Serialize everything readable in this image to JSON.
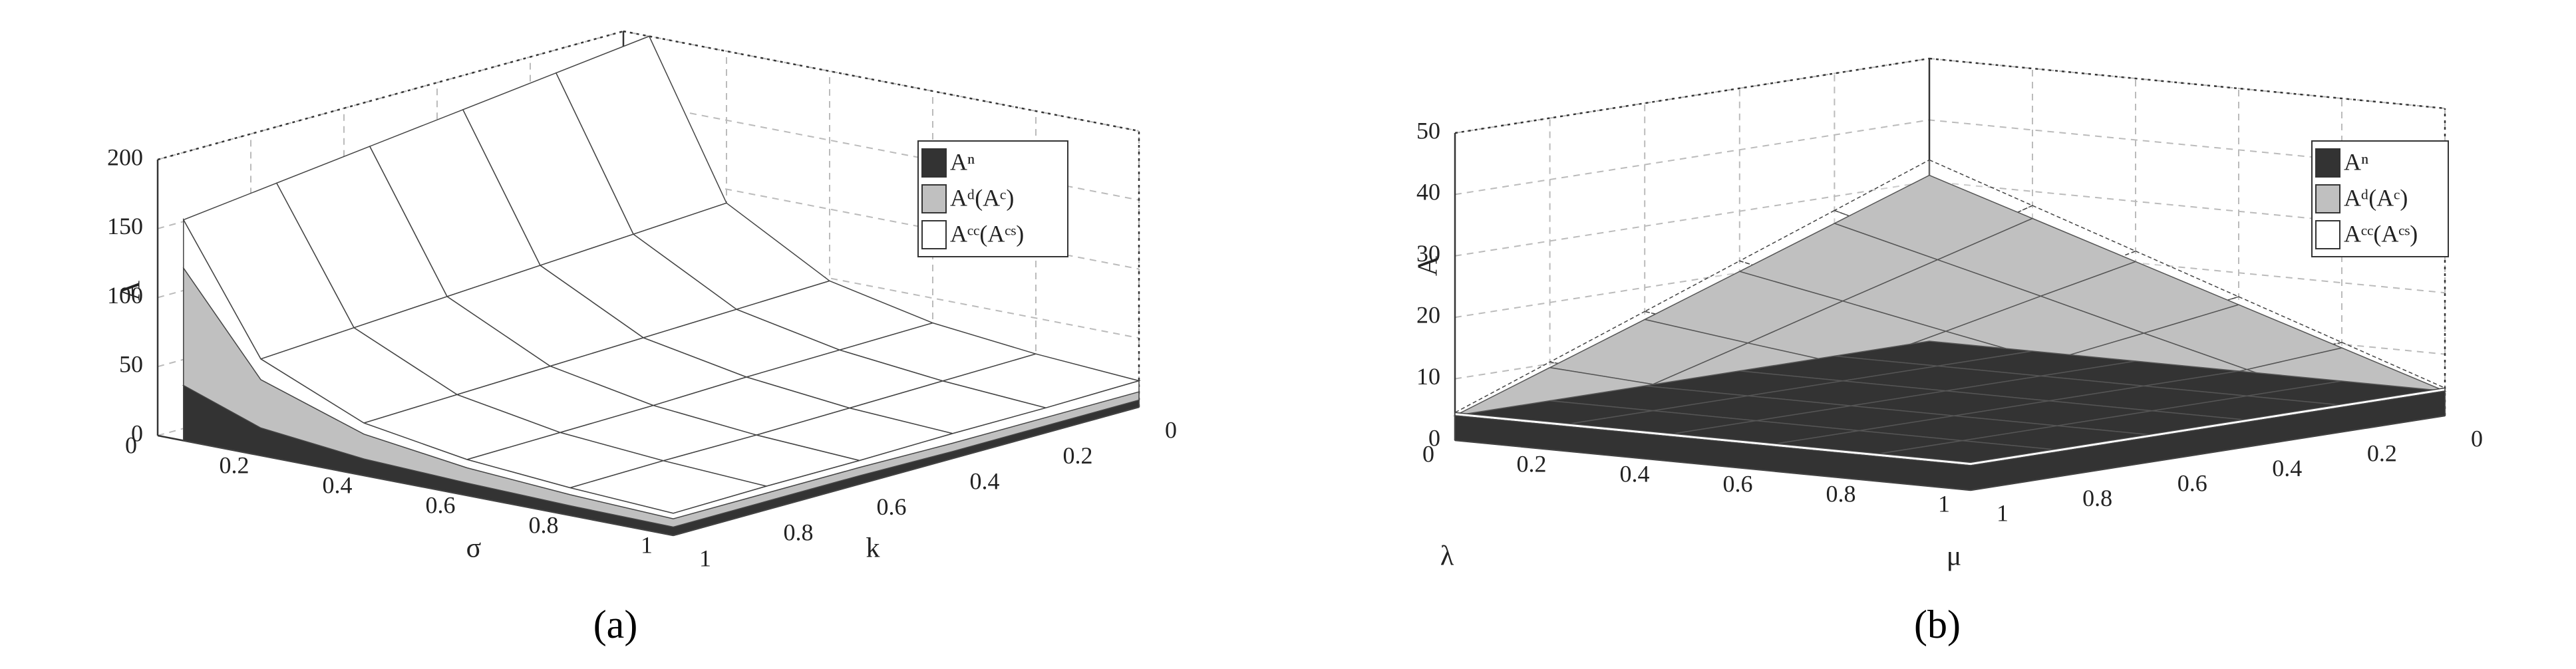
{
  "chart_data": [
    {
      "type": "surface",
      "label": "(a)",
      "xlabel": "σ",
      "ylabel": "k",
      "zlabel": "A",
      "x": [
        0.05,
        0.2,
        0.4,
        0.6,
        0.8,
        1
      ],
      "y": [
        0,
        0.2,
        0.4,
        0.6,
        0.8,
        1
      ],
      "xlim": [
        0,
        1
      ],
      "ylim": [
        0,
        1
      ],
      "zlim": [
        0,
        200
      ],
      "xticks": [
        0,
        0.2,
        0.4,
        0.6,
        0.8,
        1
      ],
      "yticks": [
        0,
        0.2,
        0.4,
        0.6,
        0.8,
        1
      ],
      "zticks": [
        0,
        50,
        100,
        150,
        200
      ],
      "legend": "upper right",
      "series": [
        {
          "name": "Aⁿ",
          "color": "#333333",
          "values": [
            [
              34,
              17,
              10,
              8,
              6,
              5
            ],
            [
              35,
              18,
              11,
              8,
              6,
              5
            ],
            [
              37,
              18,
              11,
              8,
              7,
              5
            ],
            [
              38,
              19,
              11,
              9,
              7,
              6
            ],
            [
              39,
              20,
              12,
              9,
              7,
              6
            ],
            [
              40,
              20,
              12,
              9,
              7,
              6
            ]
          ]
        },
        {
          "name": "Aᵈ(Aᶜ)",
          "color": "#c0c0c0",
          "values": [
            [
              110,
              48,
              27,
              18,
              14,
              11
            ],
            [
              113,
              49,
              28,
              18,
              14,
              11
            ],
            [
              116,
              51,
              28,
              19,
              14,
              11
            ],
            [
              119,
              52,
              29,
              19,
              15,
              12
            ],
            [
              122,
              54,
              29,
              20,
              15,
              12
            ],
            [
              125,
              55,
              30,
              20,
              15,
              12
            ]
          ]
        },
        {
          "name": "Aᶜᶜ(Aᶜˢ)",
          "color": "#ffffff",
          "values": [
            [
              200,
              90,
              48,
              32,
              24,
              19
            ],
            [
              192,
              86,
              46,
              31,
              23,
              18
            ],
            [
              184,
              82,
              44,
              30,
              22,
              18
            ],
            [
              176,
              78,
              42,
              28,
              21,
              17
            ],
            [
              168,
              74,
              40,
              27,
              21,
              17
            ],
            [
              160,
              70,
              38,
              26,
              20,
              16
            ]
          ]
        }
      ]
    },
    {
      "type": "surface",
      "label": "(b)",
      "xlabel": "λ",
      "ylabel": "μ",
      "zlabel": "A",
      "x": [
        0,
        0.2,
        0.4,
        0.6,
        0.8,
        1
      ],
      "y": [
        0,
        0.2,
        0.4,
        0.6,
        0.8,
        1
      ],
      "xlim": [
        0,
        1
      ],
      "ylim": [
        0,
        1
      ],
      "zlim": [
        0,
        50
      ],
      "xticks": [
        0,
        0.2,
        0.4,
        0.6,
        0.8,
        1
      ],
      "yticks": [
        0,
        0.2,
        0.4,
        0.6,
        0.8,
        1
      ],
      "zticks": [
        0,
        10,
        20,
        30,
        40,
        50
      ],
      "legend": "upper right",
      "series": [
        {
          "name": "Aⁿ",
          "color": "#333333",
          "values": [
            [
              4,
              4,
              4,
              4,
              4,
              4
            ],
            [
              4,
              4,
              4,
              4,
              4,
              4
            ],
            [
              4,
              4,
              4,
              4,
              4,
              4
            ],
            [
              4,
              4,
              4,
              4,
              4,
              4
            ],
            [
              4,
              4,
              4,
              4,
              4,
              4
            ],
            [
              4,
              4,
              4,
              4,
              4,
              4
            ]
          ]
        },
        {
          "name": "Aᵈ(Aᶜ)",
          "color": "#c0c0c0",
          "values": [
            [
              31,
              25.6,
              20.2,
              14.8,
              9.4,
              4
            ],
            [
              25.6,
              21.3,
              17,
              12.6,
              8.3,
              4
            ],
            [
              20.2,
              17,
              13.7,
              10.5,
              7.2,
              4
            ],
            [
              14.8,
              12.6,
              10.5,
              8.3,
              6.2,
              4
            ],
            [
              9.4,
              8.3,
              7.2,
              6.2,
              5.1,
              4
            ],
            [
              4,
              4,
              4,
              4,
              4,
              4
            ]
          ]
        },
        {
          "name": "Aᶜᶜ(Aᶜˢ)",
          "color": "#ffffff",
          "values": [
            [
              33.5,
              27.7,
              21.9,
              16.1,
              10.3,
              4.5
            ],
            [
              27.7,
              23.1,
              18.4,
              13.8,
              9.1,
              4.5
            ],
            [
              21.9,
              18.4,
              14.9,
              11.5,
              8,
              4.5
            ],
            [
              16.1,
              13.8,
              11.5,
              9.1,
              6.8,
              4.5
            ],
            [
              10.3,
              9.1,
              8,
              6.8,
              5.7,
              4.5
            ],
            [
              4.5,
              4.5,
              4.5,
              4.5,
              4.5,
              4.5
            ]
          ]
        }
      ]
    }
  ]
}
